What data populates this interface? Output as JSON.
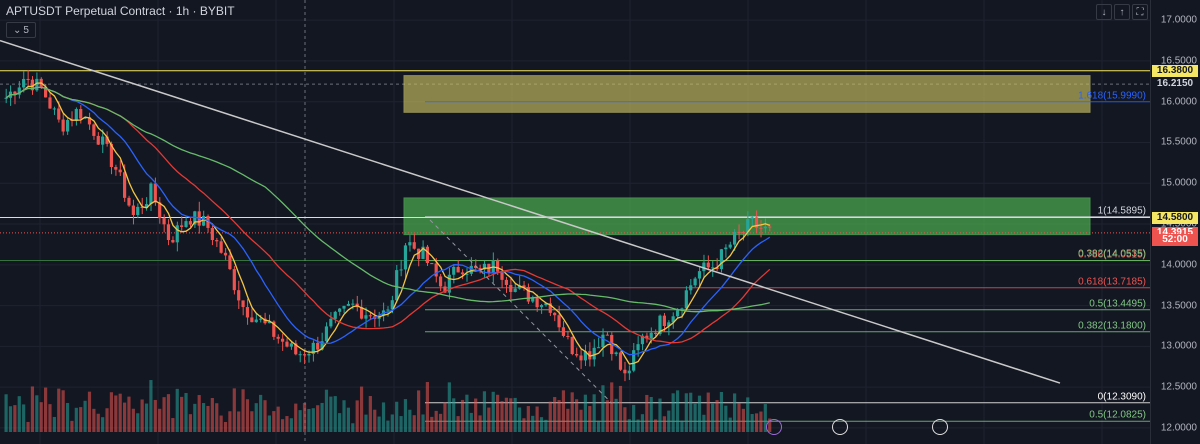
{
  "header": {
    "title": "APTUSDT Perpetual Contract · 1h · BYBIT",
    "collapse_count": "5"
  },
  "colors": {
    "background": "#131722",
    "up_candle": "#26a69a",
    "down_candle": "#ef5350",
    "supply_zone": "#c8c060",
    "demand_zone": "#4caf50",
    "trendline": "#c9c9c9",
    "ma_fast": "#f5c542",
    "ma_mid": "#2962ff",
    "ma_slow": "#e53935",
    "ma_long": "#66bb6a",
    "fib_line": "#4caf50"
  },
  "price_axis": {
    "ticks": [
      "17.0000",
      "16.5000",
      "16.0000",
      "15.5000",
      "15.0000",
      "14.5000",
      "14.0000",
      "13.5000",
      "13.0000",
      "12.5000",
      "12.0000"
    ],
    "tags": [
      {
        "label": "16.3800",
        "price": 16.38,
        "bg": "#f5e663",
        "fg": "#131722"
      },
      {
        "label": "16.2150",
        "price": 16.215,
        "bg": "#131722",
        "fg": "#d1d4dc"
      },
      {
        "label": "14.5800",
        "price": 14.58,
        "bg": "#f5e663",
        "fg": "#131722"
      },
      {
        "label": "14.3915",
        "price": 14.3915,
        "bg": "#ef5350",
        "fg": "#ffffff"
      },
      {
        "label": "52:00",
        "price": 14.3,
        "bg": "#ef5350",
        "fg": "#ffffff"
      }
    ],
    "bottom_label": "12.0000"
  },
  "fib_levels": [
    {
      "label": "1.618(15.9990)",
      "price": 15.999,
      "color": "#2962ff"
    },
    {
      "label": "1(14.5895)",
      "price": 14.5895,
      "color": "#d1d4dc"
    },
    {
      "label": "0.786(14.0515)",
      "price": 14.0515,
      "color": "#ef5350"
    },
    {
      "label": "0.382(14.0535)",
      "price": 14.0535,
      "color": "#81c784"
    },
    {
      "label": "0.618(13.7185)",
      "price": 13.7185,
      "color": "#ef5350"
    },
    {
      "label": "0.5(13.4495)",
      "price": 13.4495,
      "color": "#81c784"
    },
    {
      "label": "0.382(13.1800)",
      "price": 13.18,
      "color": "#81c784"
    },
    {
      "label": "0(12.3090)",
      "price": 12.309,
      "color": "#ffffff"
    },
    {
      "label": "0.5(12.0825)",
      "price": 12.0825,
      "color": "#81c784"
    }
  ],
  "chart_data": {
    "type": "candlestick",
    "title": "APTUSDT Perpetual Contract · 1h · BYBIT",
    "ylim": [
      11.95,
      17.1
    ],
    "horizontal_lines": [
      16.38,
      14.58
    ],
    "zones": [
      {
        "name": "supply",
        "top": 16.32,
        "bottom": 15.87
      },
      {
        "name": "demand",
        "top": 14.82,
        "bottom": 14.37
      }
    ],
    "close_path": [
      16.05,
      16.3,
      16.15,
      15.7,
      15.9,
      15.6,
      15.2,
      14.6,
      14.9,
      14.3,
      14.6,
      14.5,
      14.1,
      13.5,
      13.3,
      13.1,
      12.9,
      13.0,
      13.3,
      13.5,
      13.4,
      13.4,
      14.3,
      14.1,
      13.7,
      14.0,
      13.9,
      14.0,
      13.7,
      13.6,
      13.5,
      13.0,
      12.9,
      13.2,
      12.6,
      13.1,
      13.3,
      13.5,
      13.9,
      14.0,
      14.3,
      14.5,
      14.4
    ]
  }
}
